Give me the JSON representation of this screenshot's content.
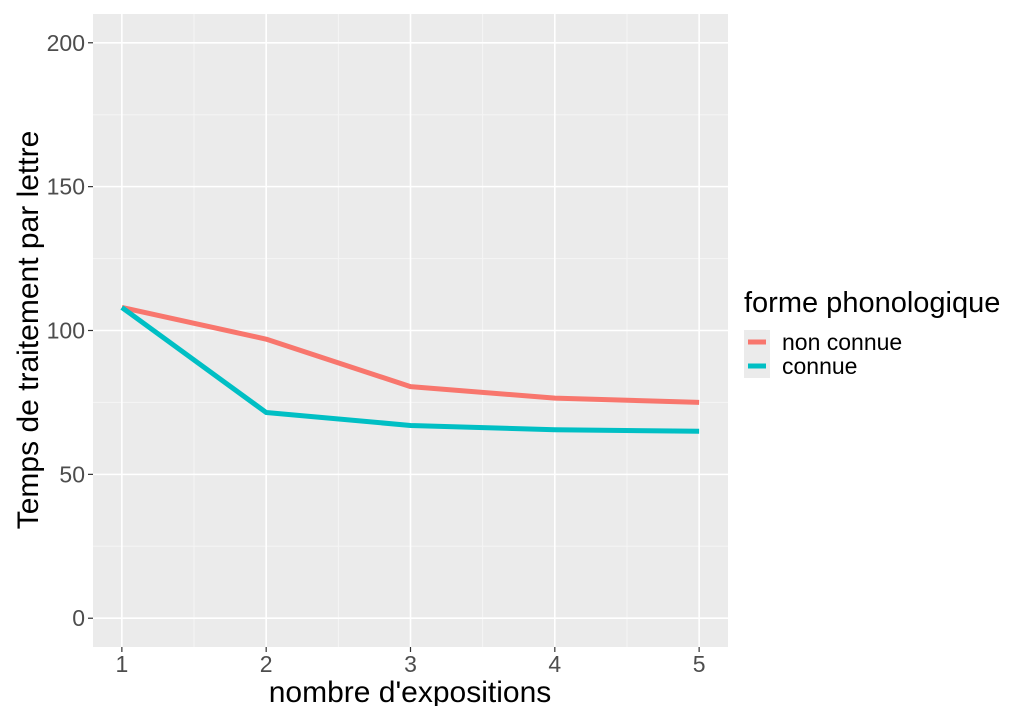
{
  "chart_data": {
    "type": "line",
    "x": [
      1,
      2,
      3,
      4,
      5
    ],
    "xlabel": "nombre d'expositions",
    "ylabel": "Temps de traitement par lettre",
    "xlim": [
      0.8,
      5.2
    ],
    "ylim": [
      -10,
      210
    ],
    "x_ticks": [
      "1",
      "2",
      "3",
      "4",
      "5"
    ],
    "y_ticks": [
      "0",
      "50",
      "100",
      "150",
      "200"
    ],
    "grid": true,
    "legend": {
      "title": "forme phonologique",
      "position": "right"
    },
    "series": [
      {
        "name": "non connue",
        "color": "#F8766D",
        "values": [
          108,
          97,
          80.5,
          76.5,
          75
        ]
      },
      {
        "name": "connue",
        "color": "#00BFC4",
        "values": [
          108,
          71.5,
          67,
          65.5,
          65
        ]
      }
    ]
  }
}
